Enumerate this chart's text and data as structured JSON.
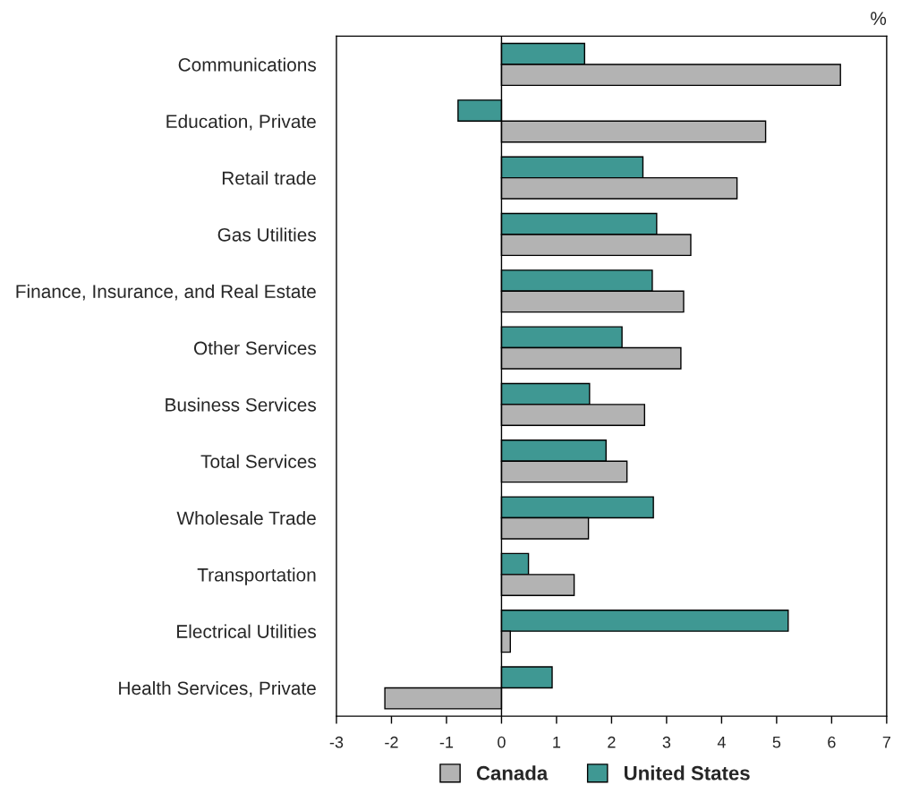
{
  "chart_data": {
    "type": "bar",
    "orientation": "horizontal",
    "categories": [
      "Communications",
      "Education, Private",
      "Retail trade",
      "Gas Utilities",
      "Finance, Insurance, and Real Estate",
      "Other Services",
      "Business Services",
      "Total Services",
      "Wholesale Trade",
      "Transportation",
      "Electrical Utilities",
      "Health Services, Private"
    ],
    "series": [
      {
        "name": "United States",
        "color": "#3f9893",
        "values": [
          1.51,
          -0.79,
          2.57,
          2.82,
          2.74,
          2.19,
          1.6,
          1.9,
          2.76,
          0.49,
          5.21,
          0.92
        ]
      },
      {
        "name": "Canada",
        "color": "#b3b3b3",
        "values": [
          6.16,
          4.8,
          4.28,
          3.44,
          3.31,
          3.26,
          2.6,
          2.28,
          1.58,
          1.32,
          0.16,
          -2.12
        ]
      }
    ],
    "xlim": [
      -3,
      7
    ],
    "xticks": [
      -3,
      -2,
      -1,
      0,
      1,
      2,
      3,
      4,
      5,
      6,
      7
    ],
    "ref_lines": [
      {
        "axis": "x",
        "value": 0,
        "color": "#000000"
      }
    ],
    "annotations": [
      "%"
    ],
    "legend": "bottom",
    "grid": false
  }
}
